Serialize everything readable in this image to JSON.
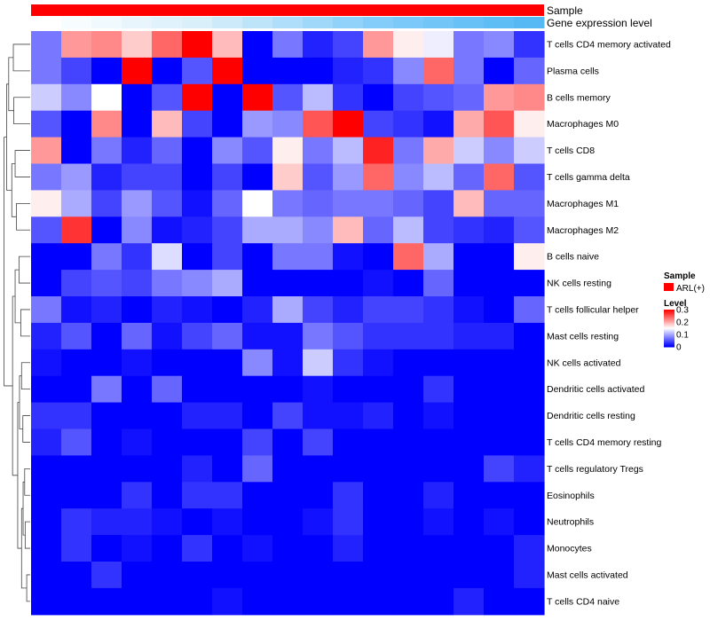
{
  "chart_data": {
    "type": "heatmap",
    "title": "",
    "annotation_rows": [
      {
        "name": "Sample",
        "color": "#ff0000"
      },
      {
        "name": "Gene expression level",
        "gradient": [
          "#ffffff",
          "#d6eef9",
          "#87cefa",
          "#56b9f4"
        ]
      }
    ],
    "rows": [
      "T cells CD4 memory activated",
      "Plasma cells",
      "B cells memory",
      "Macrophages M0",
      "T cells CD8",
      "T cells gamma delta",
      "Macrophages M1",
      "Macrophages M2",
      "B cells naive",
      "NK cells resting",
      "T cells follicular helper",
      "Mast cells resting",
      "NK cells activated",
      "Dendritic cells activated",
      "Dendritic cells resting",
      "T cells CD4 memory resting",
      "T cells regulatory  Tregs",
      "Eosinophils",
      "Neutrophils",
      "Monocytes",
      "Mast cells activated",
      "T cells CD4 naive"
    ],
    "n_columns": 17,
    "values": [
      [
        0.07,
        0.21,
        0.22,
        0.18,
        0.24,
        0.32,
        0.19,
        0.0,
        0.07,
        0.02,
        0.04,
        0.21,
        0.16,
        0.14,
        0.07,
        0.08,
        0.03
      ],
      [
        0.07,
        0.04,
        0.0,
        0.31,
        0.0,
        0.05,
        0.31,
        0.0,
        0.0,
        0.0,
        0.02,
        0.03,
        0.08,
        0.24,
        0.07,
        0.0,
        0.06
      ],
      [
        0.12,
        0.08,
        0.15,
        0.0,
        0.05,
        0.32,
        0.0,
        0.32,
        0.05,
        0.11,
        0.03,
        0.0,
        0.04,
        0.05,
        0.06,
        0.21,
        0.22
      ],
      [
        0.05,
        0.0,
        0.22,
        0.0,
        0.19,
        0.04,
        0.0,
        0.09,
        0.08,
        0.25,
        0.32,
        0.04,
        0.03,
        0.01,
        0.2,
        0.25,
        0.16
      ],
      [
        0.21,
        0.0,
        0.07,
        0.02,
        0.06,
        0.0,
        0.08,
        0.05,
        0.16,
        0.07,
        0.11,
        0.28,
        0.07,
        0.2,
        0.12,
        0.08,
        0.12
      ],
      [
        0.07,
        0.09,
        0.02,
        0.04,
        0.04,
        0.0,
        0.04,
        0.0,
        0.18,
        0.05,
        0.09,
        0.24,
        0.08,
        0.11,
        0.06,
        0.24,
        0.05
      ],
      [
        0.16,
        0.1,
        0.04,
        0.09,
        0.05,
        0.01,
        0.06,
        0.15,
        0.07,
        0.06,
        0.07,
        0.07,
        0.06,
        0.04,
        0.19,
        0.06,
        0.06
      ],
      [
        0.05,
        0.27,
        0.0,
        0.08,
        0.01,
        0.02,
        0.04,
        0.1,
        0.1,
        0.08,
        0.19,
        0.06,
        0.11,
        0.04,
        0.03,
        0.02,
        0.05
      ],
      [
        0.0,
        0.0,
        0.07,
        0.03,
        0.13,
        0.0,
        0.04,
        0.0,
        0.07,
        0.07,
        0.01,
        0.0,
        0.24,
        0.1,
        0.0,
        0.0,
        0.16
      ],
      [
        0.0,
        0.04,
        0.05,
        0.04,
        0.07,
        0.08,
        0.1,
        0.0,
        0.0,
        0.0,
        0.0,
        0.01,
        0.0,
        0.06,
        0.0,
        0.0,
        0.0
      ],
      [
        0.07,
        0.01,
        0.02,
        0.0,
        0.02,
        0.01,
        0.0,
        0.02,
        0.1,
        0.04,
        0.02,
        0.04,
        0.04,
        0.03,
        0.01,
        0.0,
        0.06
      ],
      [
        0.02,
        0.05,
        0.0,
        0.06,
        0.01,
        0.04,
        0.06,
        0.01,
        0.01,
        0.07,
        0.05,
        0.03,
        0.03,
        0.03,
        0.02,
        0.02,
        0.0
      ],
      [
        0.01,
        0.0,
        0.0,
        0.01,
        0.0,
        0.0,
        0.0,
        0.08,
        0.01,
        0.12,
        0.03,
        0.01,
        0.0,
        0.0,
        0.0,
        0.0,
        0.0
      ],
      [
        0.0,
        0.0,
        0.07,
        0.0,
        0.06,
        0.0,
        0.0,
        0.0,
        0.0,
        0.01,
        0.0,
        0.0,
        0.0,
        0.03,
        0.0,
        0.0,
        0.0
      ],
      [
        0.03,
        0.03,
        0.0,
        0.0,
        0.0,
        0.02,
        0.02,
        0.0,
        0.04,
        0.01,
        0.01,
        0.02,
        0.0,
        0.01,
        0.0,
        0.0,
        0.0
      ],
      [
        0.02,
        0.05,
        0.0,
        0.01,
        0.0,
        0.0,
        0.0,
        0.04,
        0.0,
        0.04,
        0.0,
        0.0,
        0.0,
        0.0,
        0.0,
        0.0,
        0.0
      ],
      [
        0.0,
        0.0,
        0.0,
        0.0,
        0.0,
        0.02,
        0.0,
        0.06,
        0.0,
        0.0,
        0.0,
        0.0,
        0.0,
        0.0,
        0.0,
        0.04,
        0.02
      ],
      [
        0.0,
        0.0,
        0.0,
        0.03,
        0.0,
        0.03,
        0.03,
        0.0,
        0.0,
        0.0,
        0.03,
        0.0,
        0.0,
        0.02,
        0.0,
        0.0,
        0.0
      ],
      [
        0.0,
        0.03,
        0.02,
        0.02,
        0.01,
        0.0,
        0.01,
        0.0,
        0.0,
        0.01,
        0.03,
        0.0,
        0.0,
        0.01,
        0.0,
        0.01,
        0.0
      ],
      [
        0.0,
        0.03,
        0.0,
        0.01,
        0.0,
        0.03,
        0.0,
        0.01,
        0.0,
        0.0,
        0.02,
        0.0,
        0.0,
        0.0,
        0.0,
        0.0,
        0.02
      ],
      [
        0.0,
        0.0,
        0.03,
        0.0,
        0.0,
        0.0,
        0.0,
        0.0,
        0.0,
        0.0,
        0.0,
        0.0,
        0.0,
        0.0,
        0.0,
        0.0,
        0.02
      ],
      [
        0.0,
        0.0,
        0.0,
        0.0,
        0.0,
        0.0,
        0.01,
        0.0,
        0.0,
        0.0,
        0.0,
        0.0,
        0.0,
        0.0,
        0.02,
        0.0,
        0.0
      ]
    ],
    "color_scale": {
      "min": 0,
      "max": 0.3,
      "colors": [
        "#0000ff",
        "#ffffff",
        "#ff0000"
      ],
      "mid": 0.15
    },
    "legend": {
      "sample_title": "Sample",
      "sample_entry": "ARL(+)",
      "sample_color": "#ff0000",
      "level_title": "Level",
      "level_ticks": [
        "0.3",
        "0.2",
        "0.1",
        "0"
      ],
      "level_tick_values": [
        0.3,
        0.2,
        0.1,
        0
      ],
      "placement": "right"
    },
    "dendrogram": "left"
  }
}
